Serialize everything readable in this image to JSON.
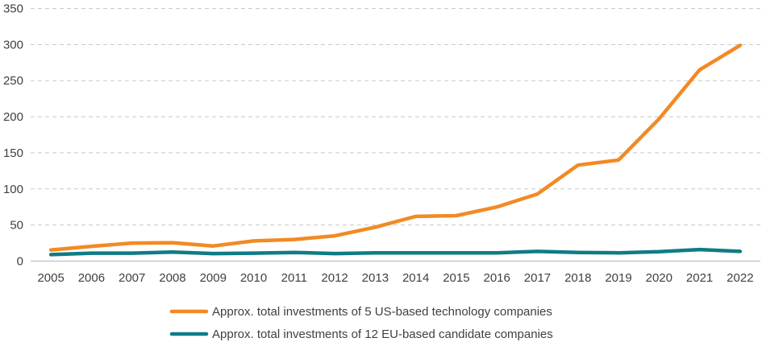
{
  "chart_data": {
    "type": "line",
    "title": "",
    "xlabel": "",
    "ylabel": "",
    "x": [
      "2005",
      "2006",
      "2007",
      "2008",
      "2009",
      "2010",
      "2011",
      "2012",
      "2013",
      "2014",
      "2015",
      "2016",
      "2017",
      "2018",
      "2019",
      "2020",
      "2021",
      "2022"
    ],
    "ylim": [
      0,
      350
    ],
    "yticks": [
      0,
      50,
      100,
      150,
      200,
      250,
      300,
      350
    ],
    "grid": "horizontal-dashed",
    "legend_position": "bottom",
    "series": [
      {
        "name": "Approx. total investments of 5 US-based technology companies",
        "color": "#F28A24",
        "values": [
          15.5,
          20.5,
          25,
          25.5,
          21,
          28,
          30,
          35,
          47,
          62,
          63,
          75,
          93,
          133,
          140,
          197,
          265,
          299
        ]
      },
      {
        "name": "Approx. total investments of 12 EU-based candidate companies",
        "color": "#0F7C85",
        "values": [
          9,
          11,
          11,
          12.5,
          10.5,
          11,
          12,
          10.5,
          11.5,
          11.5,
          11.5,
          11.5,
          13.5,
          12,
          11.5,
          13,
          16,
          13.5
        ]
      }
    ]
  }
}
